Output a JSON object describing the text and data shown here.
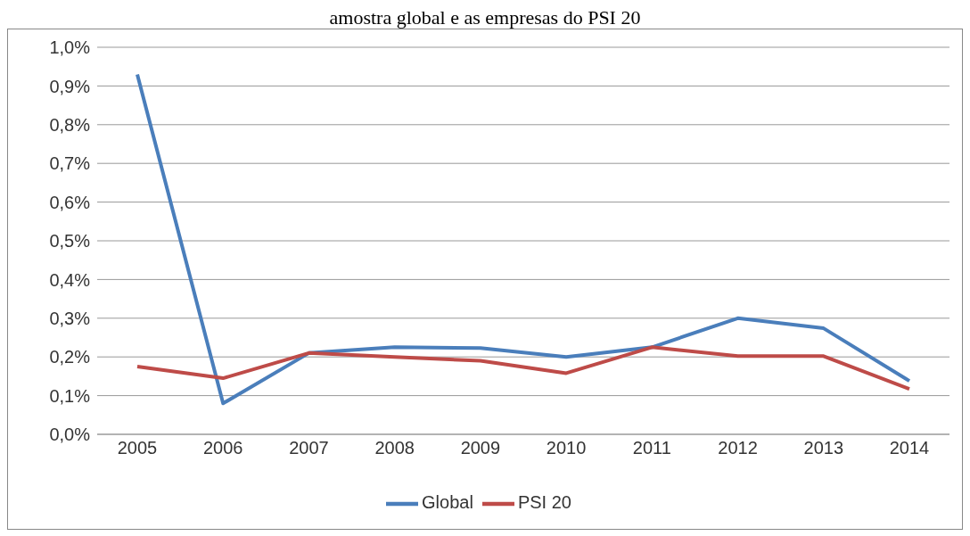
{
  "chart_data": {
    "type": "line",
    "title": "amostra global e as empresas do PSI 20",
    "categories": [
      "2005",
      "2006",
      "2007",
      "2008",
      "2009",
      "2010",
      "2011",
      "2012",
      "2013",
      "2014"
    ],
    "series": [
      {
        "name": "Global",
        "color": "#4a7ebb",
        "values": [
          0.93,
          0.08,
          0.21,
          0.225,
          0.223,
          0.2,
          0.225,
          0.3,
          0.274,
          0.138
        ]
      },
      {
        "name": "PSI 20",
        "color": "#be4b48",
        "values": [
          0.175,
          0.145,
          0.21,
          0.2,
          0.19,
          0.158,
          0.225,
          0.202,
          0.202,
          0.117
        ]
      }
    ],
    "ylim": [
      0,
      1
    ],
    "yticks": [
      {
        "value": 0,
        "label": "0,0%"
      },
      {
        "value": 0.1,
        "label": "0,1%"
      },
      {
        "value": 0.2,
        "label": "0,2%"
      },
      {
        "value": 0.3,
        "label": "0,3%"
      },
      {
        "value": 0.4,
        "label": "0,4%"
      },
      {
        "value": 0.5,
        "label": "0,5%"
      },
      {
        "value": 0.6,
        "label": "0,6%"
      },
      {
        "value": 0.7,
        "label": "0,7%"
      },
      {
        "value": 0.8,
        "label": "0,8%"
      },
      {
        "value": 0.9,
        "label": "0,9%"
      },
      {
        "value": 1,
        "label": "1,0%"
      }
    ],
    "grid": "y",
    "legend": "bottom",
    "marker": "none",
    "line_style": "solid"
  }
}
